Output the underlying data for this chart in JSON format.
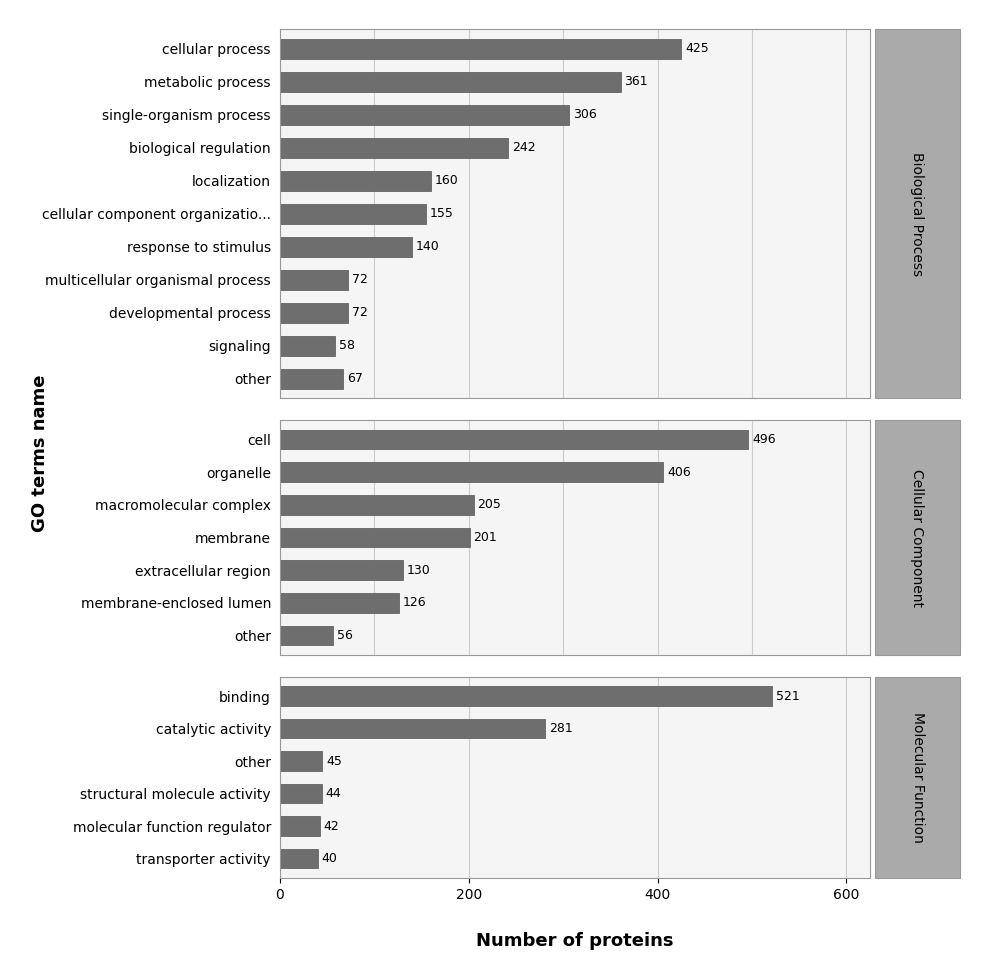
{
  "biological_process": {
    "labels": [
      "cellular process",
      "metabolic process",
      "single-organism process",
      "biological regulation",
      "localization",
      "cellular component organizatio...",
      "response to stimulus",
      "multicellular organismal process",
      "developmental process",
      "signaling",
      "other"
    ],
    "values": [
      425,
      361,
      306,
      242,
      160,
      155,
      140,
      72,
      72,
      58,
      67
    ],
    "section_label": "Biological Process"
  },
  "cellular_component": {
    "labels": [
      "cell",
      "organelle",
      "macromolecular complex",
      "membrane",
      "extracellular region",
      "membrane-enclosed lumen",
      "other"
    ],
    "values": [
      496,
      406,
      205,
      201,
      130,
      126,
      56
    ],
    "section_label": "Cellular Component"
  },
  "molecular_function": {
    "labels": [
      "binding",
      "catalytic activity",
      "other",
      "structural molecule activity",
      "molecular function regulator",
      "transporter activity"
    ],
    "values": [
      521,
      281,
      45,
      44,
      42,
      40
    ],
    "section_label": "Molecular Function"
  },
  "bar_color": "#6e6e6e",
  "bar_edge_color": "#555555",
  "background_color": "#ffffff",
  "panel_bg_color": "#f5f5f5",
  "grid_color": "#cccccc",
  "xlabel": "Number of proteins",
  "ylabel": "GO terms name",
  "xlim": [
    0,
    625
  ],
  "xticks": [
    0,
    200,
    400,
    600
  ],
  "section_label_bg": "#aaaaaa",
  "bar_height": 0.6,
  "value_label_fontsize": 9,
  "axis_label_fontsize": 13,
  "tick_fontsize": 10,
  "section_fontsize": 10
}
